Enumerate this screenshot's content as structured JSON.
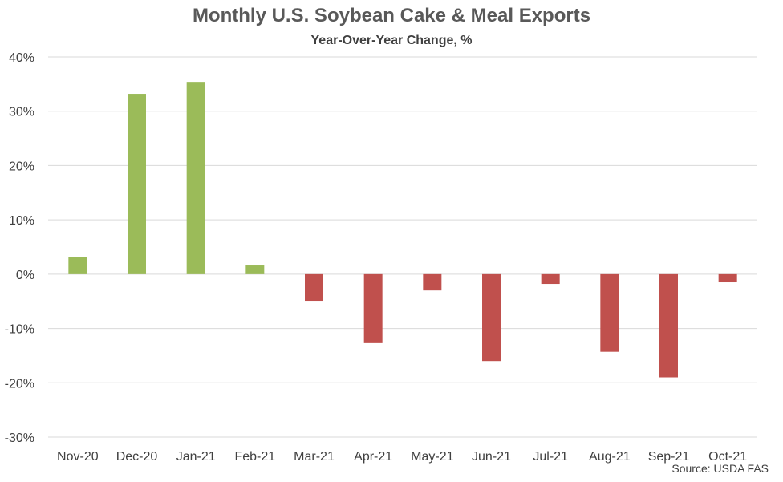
{
  "chart_data": {
    "type": "bar",
    "title": "Monthly U.S. Soybean Cake & Meal Exports",
    "subtitle": "Year-Over-Year Change, %",
    "categories": [
      "Nov-20",
      "Dec-20",
      "Jan-21",
      "Feb-21",
      "Mar-21",
      "Apr-21",
      "May-21",
      "Jun-21",
      "Jul-21",
      "Aug-21",
      "Sep-21",
      "Oct-21"
    ],
    "values": [
      3.1,
      33.2,
      35.4,
      1.6,
      -4.9,
      -12.7,
      -3.0,
      -16.0,
      -1.8,
      -14.3,
      -19.0,
      -1.5
    ],
    "ylim": [
      -30,
      40
    ],
    "yticks": [
      40,
      30,
      20,
      10,
      0,
      -10,
      -20,
      -30
    ],
    "ytick_labels": [
      "40%",
      "30%",
      "20%",
      "10%",
      "0%",
      "-10%",
      "-20%",
      "-30%"
    ],
    "grid": true,
    "colors": {
      "positive": "#9BBB59",
      "negative": "#C0504D",
      "grid": "#D9D9D9"
    },
    "source": "Source: USDA FAS"
  }
}
